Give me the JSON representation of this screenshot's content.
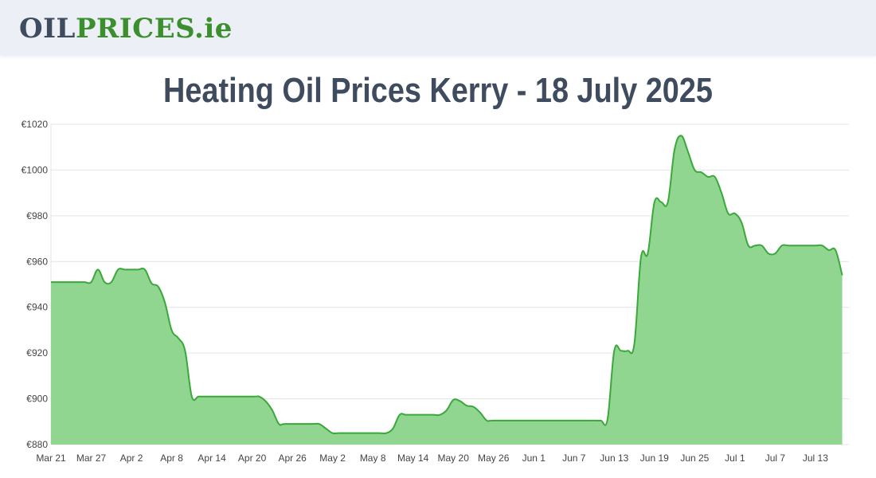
{
  "header": {
    "logo_part1": "OIL",
    "logo_part2": "PRICES",
    "logo_part3": ".ie"
  },
  "page_title": "Heating Oil Prices Kerry - 18 July 2025",
  "colors": {
    "header_bg": "#eceff5",
    "logo_dark": "#3f4b5e",
    "logo_green": "#3b8f2d",
    "line": "#3aa83a",
    "fill": "#90d590"
  },
  "chart_data": {
    "type": "area",
    "title": "Heating Oil Prices Kerry - 18 July 2025",
    "xlabel": "",
    "ylabel": "",
    "ylim": [
      880,
      1020
    ],
    "y_ticks": [
      880,
      900,
      920,
      940,
      960,
      980,
      1000,
      1020
    ],
    "y_tick_format": "€",
    "grid": true,
    "x_ticks": [
      "Mar 21",
      "Mar 27",
      "Apr 2",
      "Apr 8",
      "Apr 14",
      "Apr 20",
      "Apr 26",
      "May 2",
      "May 8",
      "May 14",
      "May 20",
      "May 26",
      "Jun 1",
      "Jun 7",
      "Jun 13",
      "Jun 19",
      "Jun 25",
      "Jul 1",
      "Jul 7",
      "Jul 13"
    ],
    "x_start": "2025-03-21",
    "x_end": "2025-07-18",
    "series": [
      {
        "points": [
          [
            "2025-03-21",
            951
          ],
          [
            "2025-03-22",
            951
          ],
          [
            "2025-03-23",
            951
          ],
          [
            "2025-03-24",
            951
          ],
          [
            "2025-03-25",
            951
          ],
          [
            "2025-03-26",
            951
          ],
          [
            "2025-03-27",
            951
          ],
          [
            "2025-03-28",
            956.5
          ],
          [
            "2025-03-29",
            951
          ],
          [
            "2025-03-30",
            951
          ],
          [
            "2025-03-31",
            956.5
          ],
          [
            "2025-04-01",
            956.5
          ],
          [
            "2025-04-02",
            956.5
          ],
          [
            "2025-04-03",
            956.5
          ],
          [
            "2025-04-04",
            956.5
          ],
          [
            "2025-04-05",
            950.5
          ],
          [
            "2025-04-06",
            949
          ],
          [
            "2025-04-07",
            942
          ],
          [
            "2025-04-08",
            930
          ],
          [
            "2025-04-09",
            926.5
          ],
          [
            "2025-04-10",
            921
          ],
          [
            "2025-04-11",
            901
          ],
          [
            "2025-04-12",
            901
          ],
          [
            "2025-04-13",
            901
          ],
          [
            "2025-04-20",
            901
          ],
          [
            "2025-04-21",
            901
          ],
          [
            "2025-04-22",
            899
          ],
          [
            "2025-04-23",
            895
          ],
          [
            "2025-04-24",
            889
          ],
          [
            "2025-04-25",
            889
          ],
          [
            "2025-04-29",
            889
          ],
          [
            "2025-04-30",
            889
          ],
          [
            "2025-05-01",
            887
          ],
          [
            "2025-05-02",
            885
          ],
          [
            "2025-05-03",
            885
          ],
          [
            "2025-05-05",
            885
          ],
          [
            "2025-05-07",
            885
          ],
          [
            "2025-05-09",
            885
          ],
          [
            "2025-05-10",
            885
          ],
          [
            "2025-05-11",
            887
          ],
          [
            "2025-05-12",
            893
          ],
          [
            "2025-05-13",
            893
          ],
          [
            "2025-05-15",
            893
          ],
          [
            "2025-05-17",
            893
          ],
          [
            "2025-05-18",
            893
          ],
          [
            "2025-05-19",
            895
          ],
          [
            "2025-05-20",
            899.5
          ],
          [
            "2025-05-21",
            899
          ],
          [
            "2025-05-22",
            897
          ],
          [
            "2025-05-23",
            896.5
          ],
          [
            "2025-05-24",
            894
          ],
          [
            "2025-05-25",
            890.5
          ],
          [
            "2025-05-26",
            890.5
          ],
          [
            "2025-05-31",
            890.5
          ],
          [
            "2025-06-05",
            890.5
          ],
          [
            "2025-06-10",
            890.5
          ],
          [
            "2025-06-11",
            890.5
          ],
          [
            "2025-06-12",
            891
          ],
          [
            "2025-06-13",
            921
          ],
          [
            "2025-06-14",
            921
          ],
          [
            "2025-06-15",
            921
          ],
          [
            "2025-06-16",
            924
          ],
          [
            "2025-06-17",
            962
          ],
          [
            "2025-06-18",
            963.5
          ],
          [
            "2025-06-19",
            986
          ],
          [
            "2025-06-20",
            986
          ],
          [
            "2025-06-21",
            986
          ],
          [
            "2025-06-22",
            1009
          ],
          [
            "2025-06-23",
            1015
          ],
          [
            "2025-06-24",
            1008
          ],
          [
            "2025-06-25",
            1000
          ],
          [
            "2025-06-26",
            999
          ],
          [
            "2025-06-27",
            997
          ],
          [
            "2025-06-28",
            997
          ],
          [
            "2025-06-29",
            990
          ],
          [
            "2025-06-30",
            981
          ],
          [
            "2025-07-01",
            981
          ],
          [
            "2025-07-02",
            977
          ],
          [
            "2025-07-03",
            967
          ],
          [
            "2025-07-04",
            967
          ],
          [
            "2025-07-05",
            967
          ],
          [
            "2025-07-06",
            963.5
          ],
          [
            "2025-07-07",
            963.5
          ],
          [
            "2025-07-08",
            967
          ],
          [
            "2025-07-09",
            967
          ],
          [
            "2025-07-11",
            967
          ],
          [
            "2025-07-13",
            967
          ],
          [
            "2025-07-14",
            967
          ],
          [
            "2025-07-15",
            965
          ],
          [
            "2025-07-16",
            965
          ],
          [
            "2025-07-17",
            954
          ]
        ]
      }
    ]
  }
}
